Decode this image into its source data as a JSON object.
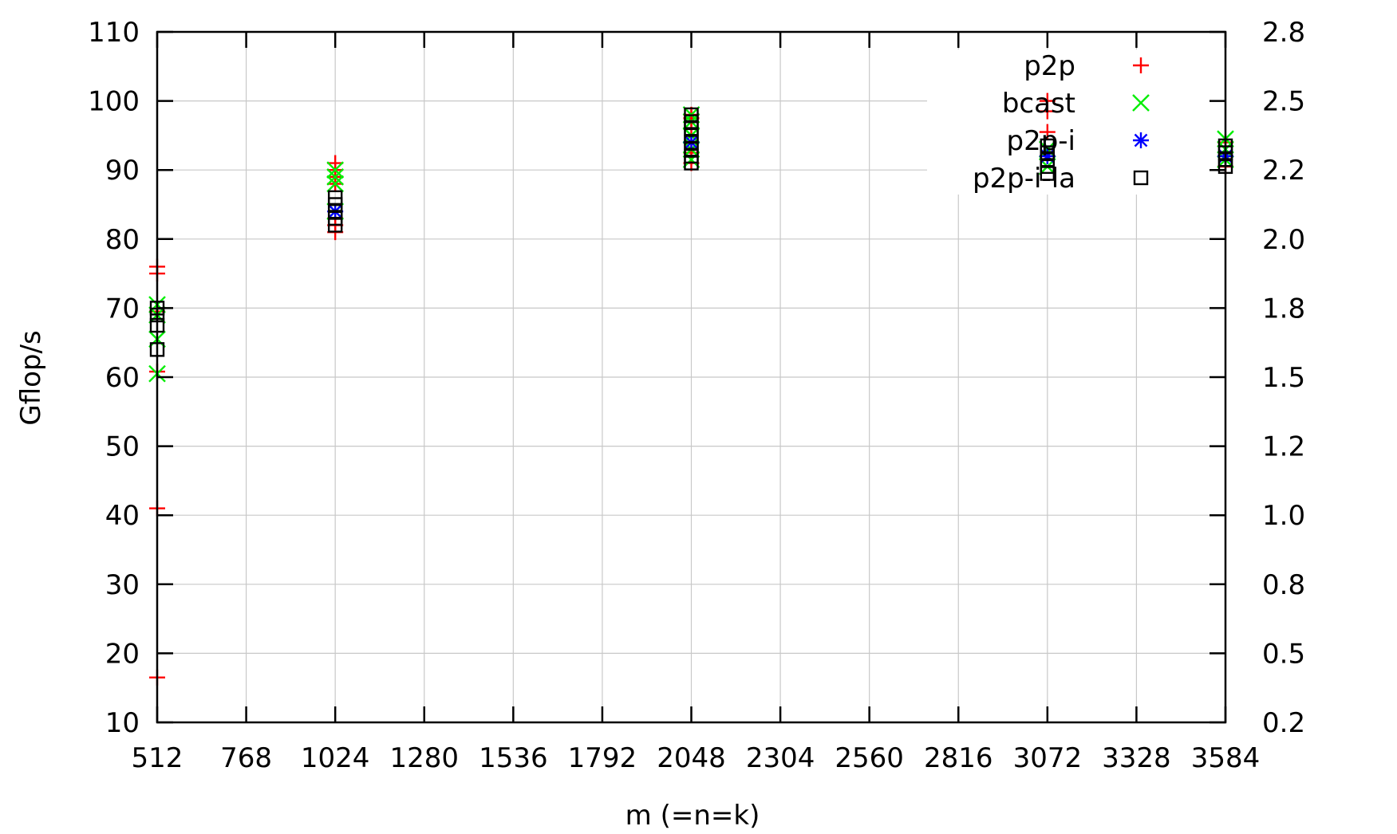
{
  "chart_data": {
    "type": "scatter",
    "xlabel": "m (=n=k)",
    "ylabel": "Gflop/s",
    "xlim": [
      512,
      3584
    ],
    "ylim": [
      10,
      110
    ],
    "y2lim": [
      0.25,
      2.75
    ],
    "x_ticks": [
      "512",
      "768",
      "1024",
      "1280",
      "1536",
      "1792",
      "2048",
      "2304",
      "2560",
      "2816",
      "3072",
      "3328",
      "3584"
    ],
    "y_ticks": [
      "10",
      "20",
      "30",
      "40",
      "50",
      "60",
      "70",
      "80",
      "90",
      "100",
      "110"
    ],
    "y2_ticks": [
      "0.2",
      "0.5",
      "0.8",
      "1.0",
      "1.2",
      "1.5",
      "1.8",
      "2.0",
      "2.2",
      "2.5",
      "2.8"
    ],
    "grid": true,
    "legend_position": "top-right",
    "series": [
      {
        "name": "p2p",
        "marker": "plus",
        "color": "#ff0000",
        "points": [
          [
            512,
            16.5
          ],
          [
            512,
            41
          ],
          [
            512,
            60.8
          ],
          [
            512,
            69.5
          ],
          [
            512,
            75
          ],
          [
            512,
            76
          ],
          [
            1024,
            81
          ],
          [
            1024,
            82
          ],
          [
            1024,
            83
          ],
          [
            1024,
            88
          ],
          [
            1024,
            89
          ],
          [
            1024,
            90
          ],
          [
            1024,
            91
          ],
          [
            2048,
            91
          ],
          [
            2048,
            92.5
          ],
          [
            2048,
            94
          ],
          [
            2048,
            96
          ],
          [
            2048,
            97.5
          ],
          [
            2048,
            98
          ],
          [
            3072,
            95.5
          ],
          [
            3072,
            98.5
          ],
          [
            3072,
            100
          ],
          [
            3072,
            92
          ],
          [
            3584,
            90.5
          ],
          [
            3584,
            92
          ],
          [
            3584,
            94
          ]
        ]
      },
      {
        "name": "bcast",
        "marker": "cross",
        "color": "#00ee00",
        "points": [
          [
            512,
            60.5
          ],
          [
            512,
            65.5
          ],
          [
            512,
            69
          ],
          [
            512,
            70.5
          ],
          [
            1024,
            88
          ],
          [
            1024,
            89
          ],
          [
            1024,
            90
          ],
          [
            1024,
            84
          ],
          [
            2048,
            91.5
          ],
          [
            2048,
            93
          ],
          [
            2048,
            95
          ],
          [
            2048,
            97
          ],
          [
            2048,
            98
          ],
          [
            3072,
            93
          ],
          [
            3072,
            90.5
          ],
          [
            3584,
            91.5
          ],
          [
            3584,
            93
          ],
          [
            3584,
            94.5
          ]
        ]
      },
      {
        "name": "p2p-i",
        "marker": "star",
        "color": "#0000ff",
        "points": [
          [
            1024,
            84
          ],
          [
            2048,
            94
          ],
          [
            3072,
            92
          ],
          [
            3584,
            92
          ]
        ]
      },
      {
        "name": "p2p-i-la",
        "marker": "square",
        "color": "#000000",
        "points": [
          [
            512,
            64
          ],
          [
            512,
            67.5
          ],
          [
            512,
            69
          ],
          [
            512,
            70
          ],
          [
            1024,
            82
          ],
          [
            1024,
            83
          ],
          [
            1024,
            84
          ],
          [
            1024,
            85
          ],
          [
            1024,
            86
          ],
          [
            2048,
            91
          ],
          [
            2048,
            92
          ],
          [
            2048,
            93
          ],
          [
            2048,
            94
          ],
          [
            2048,
            95
          ],
          [
            2048,
            96
          ],
          [
            2048,
            97
          ],
          [
            2048,
            98
          ],
          [
            3072,
            89.5
          ],
          [
            3072,
            90.5
          ],
          [
            3072,
            91.5
          ],
          [
            3072,
            92.5
          ],
          [
            3072,
            93.5
          ],
          [
            3584,
            90.5
          ],
          [
            3584,
            91.5
          ],
          [
            3584,
            92.5
          ],
          [
            3584,
            93.5
          ]
        ]
      }
    ]
  }
}
